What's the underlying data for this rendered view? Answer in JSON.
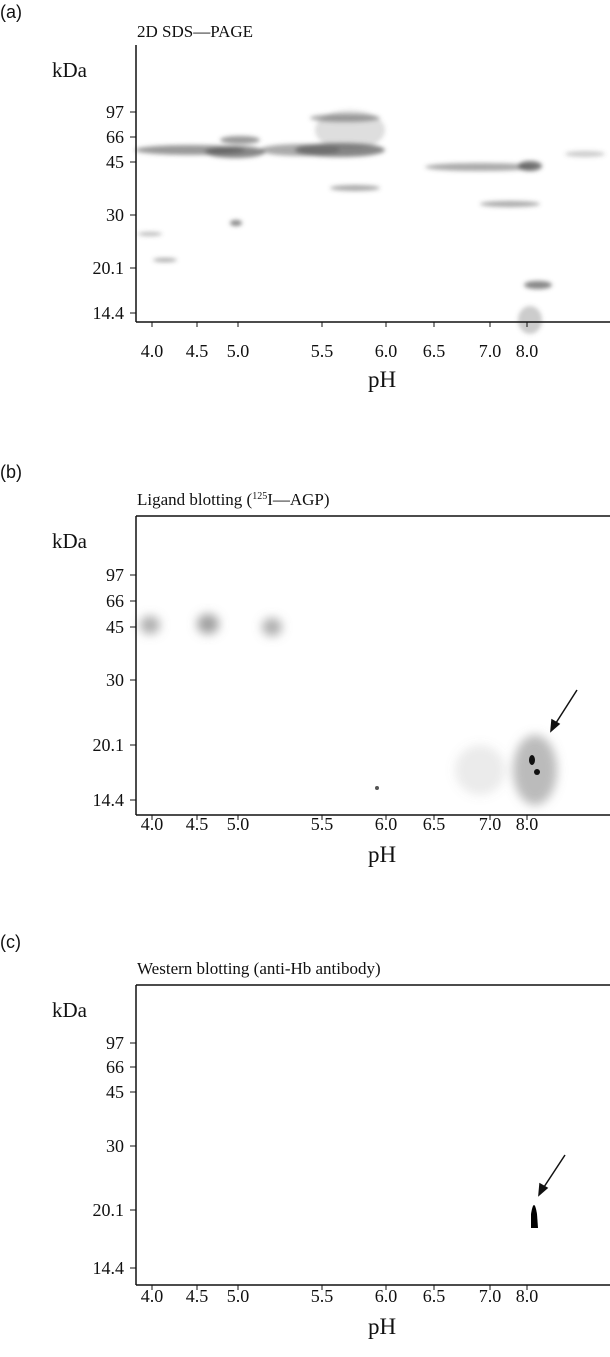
{
  "panels": [
    {
      "label": "(a)",
      "title": [
        "2D SDS—PAGE"
      ],
      "y_axis_label": "kDa",
      "yticks": [
        "97",
        "66",
        "45",
        "30",
        "20.1",
        "14.4"
      ],
      "xticks": [
        "4.0",
        "4.5",
        "5.0",
        "5.5",
        "6.0",
        "6.5",
        "7.0",
        "8.0"
      ],
      "x_axis_label": "pH"
    },
    {
      "label": "(b)",
      "title": [
        "Ligand blotting (",
        "125",
        "I—AGP)"
      ],
      "y_axis_label": "kDa",
      "yticks": [
        "97",
        "66",
        "45",
        "30",
        "20.1",
        "14.4"
      ],
      "xticks": [
        "4.0",
        "4.5",
        "5.0",
        "5.5",
        "6.0",
        "6.5",
        "7.0",
        "8.0"
      ],
      "x_axis_label": "pH"
    },
    {
      "label": "(c)",
      "title": [
        "Western blotting (anti-Hb antibody)"
      ],
      "y_axis_label": "kDa",
      "yticks": [
        "97",
        "66",
        "45",
        "30",
        "20.1",
        "14.4"
      ],
      "xticks": [
        "4.0",
        "4.5",
        "5.0",
        "5.5",
        "6.0",
        "6.5",
        "7.0",
        "8.0"
      ],
      "x_axis_label": "pH"
    }
  ]
}
